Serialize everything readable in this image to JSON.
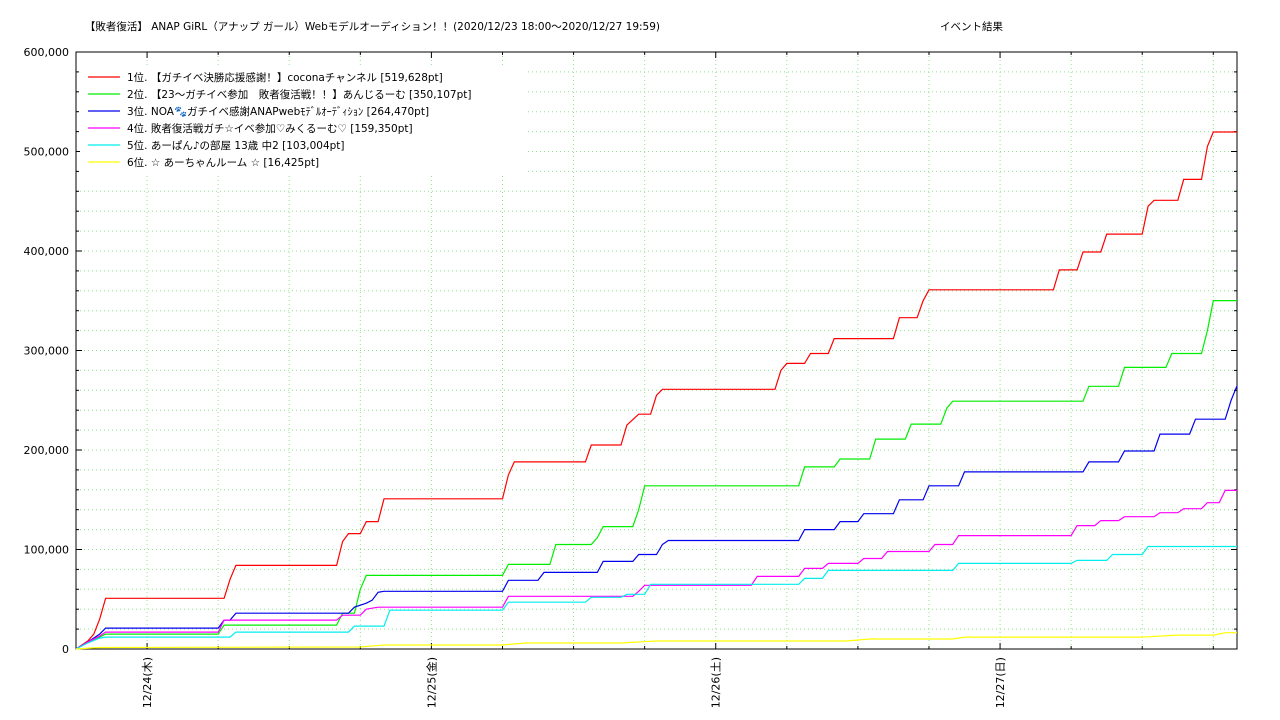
{
  "chart_data": {
    "type": "line",
    "title": "【敗者復活】 ANAP GiRL（アナップ ガール）Webモデルオーディション！！(2020/12/23 18:00〜2020/12/27 19:59)",
    "subtitle": "イベント結果",
    "xlabel": "",
    "ylabel": "",
    "x_unit": "hours since 2020/12/23 18:00",
    "xlim": [
      0,
      98
    ],
    "ylim": [
      0,
      600000
    ],
    "y_ticks": [
      0,
      100000,
      200000,
      300000,
      400000,
      500000,
      600000
    ],
    "y_tick_labels": [
      "0",
      "100,000",
      "200,000",
      "300,000",
      "400,000",
      "500,000",
      "600,000"
    ],
    "x_ticks": [
      6,
      30,
      54,
      78
    ],
    "x_tick_labels": [
      "12/24(木)",
      "12/25(金)",
      "12/26(土)",
      "12/27(日)"
    ],
    "grid": true,
    "legend_position": "top-left",
    "series": [
      {
        "name": "1位. 【ガチイベ決勝応援感謝！】coconaチャンネル [519,628pt]",
        "color": "#ff0000",
        "points": [
          [
            0,
            0
          ],
          [
            1,
            8000
          ],
          [
            1.5,
            15000
          ],
          [
            2,
            30000
          ],
          [
            2.5,
            51000
          ],
          [
            12.5,
            51000
          ],
          [
            13,
            70000
          ],
          [
            13.5,
            84000
          ],
          [
            22,
            84000
          ],
          [
            22.5,
            108000
          ],
          [
            23,
            116000
          ],
          [
            24,
            116000
          ],
          [
            24.5,
            128000
          ],
          [
            25.5,
            128000
          ],
          [
            26,
            151000
          ],
          [
            36,
            151000
          ],
          [
            36.5,
            175000
          ],
          [
            37,
            188000
          ],
          [
            43,
            188000
          ],
          [
            43.5,
            205000
          ],
          [
            46,
            205000
          ],
          [
            46.5,
            225000
          ],
          [
            47.5,
            236000
          ],
          [
            48.5,
            236000
          ],
          [
            49,
            255000
          ],
          [
            49.5,
            261000
          ],
          [
            59,
            261000
          ],
          [
            59.5,
            280000
          ],
          [
            60,
            287000
          ],
          [
            61.5,
            287000
          ],
          [
            62,
            297000
          ],
          [
            63.5,
            297000
          ],
          [
            64,
            312000
          ],
          [
            69,
            312000
          ],
          [
            69.5,
            333000
          ],
          [
            71,
            333000
          ],
          [
            71.5,
            350000
          ],
          [
            72,
            361000
          ],
          [
            82.5,
            361000
          ],
          [
            83,
            381000
          ],
          [
            84.5,
            381000
          ],
          [
            85,
            399000
          ],
          [
            86.5,
            399000
          ],
          [
            87,
            417000
          ],
          [
            90,
            417000
          ],
          [
            90.5,
            445000
          ],
          [
            91,
            451000
          ],
          [
            93,
            451000
          ],
          [
            93.5,
            472000
          ],
          [
            95,
            472000
          ],
          [
            95.5,
            505000
          ],
          [
            96,
            519628
          ],
          [
            98,
            519628
          ]
        ]
      },
      {
        "name": "2位. 【23〜ガチイベ参加　敗者復活戦！！】あんじるーむ [350,107pt]",
        "color": "#00ee00",
        "points": [
          [
            0,
            0
          ],
          [
            1,
            7000
          ],
          [
            2,
            12000
          ],
          [
            2.5,
            15000
          ],
          [
            12,
            15000
          ],
          [
            12.5,
            24000
          ],
          [
            22,
            24000
          ],
          [
            22.5,
            36000
          ],
          [
            23.5,
            36000
          ],
          [
            24,
            60000
          ],
          [
            24.5,
            74000
          ],
          [
            36,
            74000
          ],
          [
            36.5,
            85000
          ],
          [
            40,
            85000
          ],
          [
            40.5,
            105000
          ],
          [
            43.5,
            105000
          ],
          [
            44,
            112000
          ],
          [
            44.5,
            123000
          ],
          [
            47,
            123000
          ],
          [
            47.5,
            140000
          ],
          [
            48,
            164000
          ],
          [
            61,
            164000
          ],
          [
            61.5,
            183000
          ],
          [
            64,
            183000
          ],
          [
            64.5,
            191000
          ],
          [
            67,
            191000
          ],
          [
            67.5,
            211000
          ],
          [
            70,
            211000
          ],
          [
            70.5,
            226000
          ],
          [
            73,
            226000
          ],
          [
            73.5,
            242000
          ],
          [
            74,
            249000
          ],
          [
            85,
            249000
          ],
          [
            85.5,
            264000
          ],
          [
            88,
            264000
          ],
          [
            88.5,
            283000
          ],
          [
            92,
            283000
          ],
          [
            92.5,
            297000
          ],
          [
            95,
            297000
          ],
          [
            95.5,
            320000
          ],
          [
            96,
            350107
          ],
          [
            98,
            350107
          ]
        ]
      },
      {
        "name": "3位. NOA🐾ガチイベ感謝ANAPwebﾓﾃﾞﾙｵｰﾃﾞｨｼｮﾝ [264,470pt]",
        "color": "#0000ee",
        "points": [
          [
            0,
            0
          ],
          [
            1,
            7000
          ],
          [
            2,
            15000
          ],
          [
            2.5,
            21000
          ],
          [
            12,
            21000
          ],
          [
            12.5,
            29000
          ],
          [
            13,
            29000
          ],
          [
            13.5,
            36000
          ],
          [
            23,
            36000
          ],
          [
            23.5,
            42000
          ],
          [
            24.5,
            46000
          ],
          [
            25,
            49000
          ],
          [
            25.5,
            57000
          ],
          [
            26,
            58000
          ],
          [
            36,
            58000
          ],
          [
            36.5,
            69000
          ],
          [
            39,
            69000
          ],
          [
            39.5,
            77000
          ],
          [
            44,
            77000
          ],
          [
            44.5,
            88000
          ],
          [
            47,
            88000
          ],
          [
            47.5,
            95000
          ],
          [
            49,
            95000
          ],
          [
            49.5,
            105000
          ],
          [
            50,
            109000
          ],
          [
            61,
            109000
          ],
          [
            61.5,
            120000
          ],
          [
            64,
            120000
          ],
          [
            64.5,
            128000
          ],
          [
            66,
            128000
          ],
          [
            66.5,
            136000
          ],
          [
            69,
            136000
          ],
          [
            69.5,
            150000
          ],
          [
            71.5,
            150000
          ],
          [
            72,
            164000
          ],
          [
            74.5,
            164000
          ],
          [
            75,
            178000
          ],
          [
            85,
            178000
          ],
          [
            85.5,
            188000
          ],
          [
            88,
            188000
          ],
          [
            88.5,
            199000
          ],
          [
            91,
            199000
          ],
          [
            91.5,
            216000
          ],
          [
            94,
            216000
          ],
          [
            94.5,
            231000
          ],
          [
            97,
            231000
          ],
          [
            97.5,
            250000
          ],
          [
            98,
            264470
          ]
        ]
      },
      {
        "name": "4位. 敗者復活戦ガチ☆イベ参加♡みくるーむ♡ [159,350pt]",
        "color": "#ff00ff",
        "points": [
          [
            0,
            0
          ],
          [
            1,
            7000
          ],
          [
            2,
            13000
          ],
          [
            2.5,
            17000
          ],
          [
            12,
            17000
          ],
          [
            12.5,
            29000
          ],
          [
            22,
            29000
          ],
          [
            22.5,
            34000
          ],
          [
            24,
            34000
          ],
          [
            24.5,
            40000
          ],
          [
            25.5,
            42000
          ],
          [
            36,
            42000
          ],
          [
            36.5,
            53000
          ],
          [
            47,
            53000
          ],
          [
            47.5,
            58000
          ],
          [
            48,
            64000
          ],
          [
            57,
            64000
          ],
          [
            57.5,
            73000
          ],
          [
            61,
            73000
          ],
          [
            61.5,
            81000
          ],
          [
            63,
            81000
          ],
          [
            63.5,
            86000
          ],
          [
            66,
            86000
          ],
          [
            66.5,
            91000
          ],
          [
            68,
            91000
          ],
          [
            68.5,
            98000
          ],
          [
            72,
            98000
          ],
          [
            72.5,
            105000
          ],
          [
            74,
            105000
          ],
          [
            74.5,
            114000
          ],
          [
            84,
            114000
          ],
          [
            84.5,
            124000
          ],
          [
            86,
            124000
          ],
          [
            86.5,
            129000
          ],
          [
            88,
            129000
          ],
          [
            88.5,
            133000
          ],
          [
            91,
            133000
          ],
          [
            91.5,
            137000
          ],
          [
            93,
            137000
          ],
          [
            93.5,
            141000
          ],
          [
            95,
            141000
          ],
          [
            95.5,
            147000
          ],
          [
            96.5,
            147000
          ],
          [
            97,
            159350
          ],
          [
            98,
            159350
          ]
        ]
      },
      {
        "name": "5位. あーぱん♪の部屋 13歳 中2 [103,004pt]",
        "color": "#00eeee",
        "points": [
          [
            0,
            0
          ],
          [
            1,
            6000
          ],
          [
            2,
            11000
          ],
          [
            2.5,
            12000
          ],
          [
            13,
            12000
          ],
          [
            13.5,
            17000
          ],
          [
            23,
            17000
          ],
          [
            23.5,
            23000
          ],
          [
            26,
            23000
          ],
          [
            26.5,
            39000
          ],
          [
            36,
            39000
          ],
          [
            36.5,
            47000
          ],
          [
            43,
            47000
          ],
          [
            43.5,
            52000
          ],
          [
            46,
            52000
          ],
          [
            46.5,
            55000
          ],
          [
            48,
            55000
          ],
          [
            48.5,
            65000
          ],
          [
            61,
            65000
          ],
          [
            61.5,
            71000
          ],
          [
            63,
            71000
          ],
          [
            63.5,
            79000
          ],
          [
            74,
            79000
          ],
          [
            74.5,
            86000
          ],
          [
            84,
            86000
          ],
          [
            84.5,
            89000
          ],
          [
            87,
            89000
          ],
          [
            87.5,
            95000
          ],
          [
            90,
            95000
          ],
          [
            90.5,
            103000
          ],
          [
            98,
            103004
          ]
        ]
      },
      {
        "name": "6位. ☆ あーちゃんルーム ☆ [16,425pt]",
        "color": "#ffff00",
        "points": [
          [
            0,
            0
          ],
          [
            2,
            1500
          ],
          [
            24,
            2000
          ],
          [
            26,
            4000
          ],
          [
            36,
            4000
          ],
          [
            38,
            6000
          ],
          [
            46,
            6000
          ],
          [
            49,
            8000
          ],
          [
            65,
            8000
          ],
          [
            67,
            10000
          ],
          [
            74,
            10000
          ],
          [
            75,
            12000
          ],
          [
            90,
            12000
          ],
          [
            93,
            14000
          ],
          [
            96,
            14000
          ],
          [
            97,
            16425
          ],
          [
            98,
            16425
          ]
        ]
      }
    ]
  }
}
